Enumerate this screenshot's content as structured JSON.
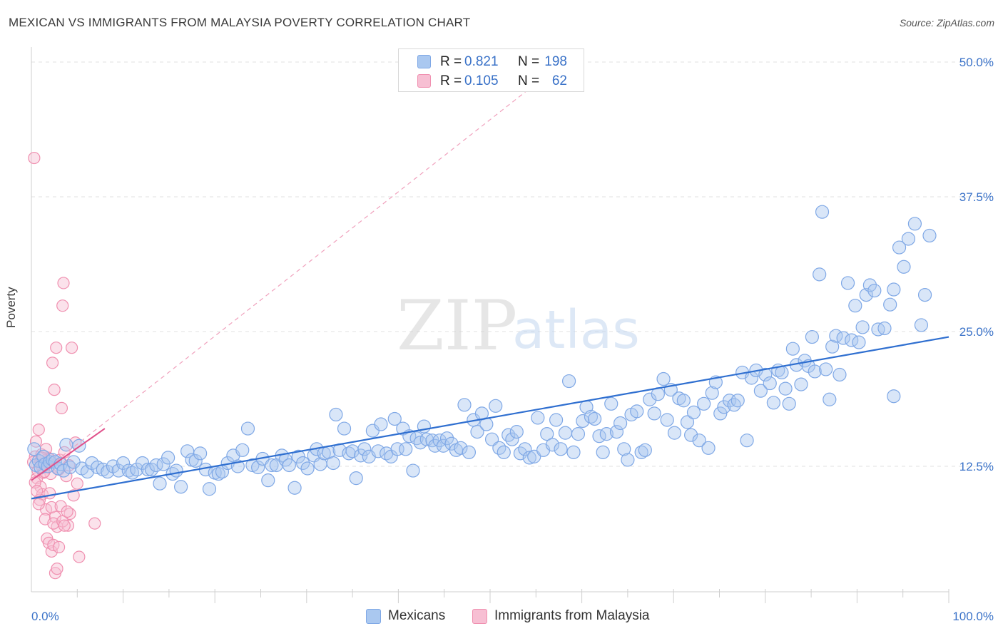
{
  "title": "MEXICAN VS IMMIGRANTS FROM MALAYSIA POVERTY CORRELATION CHART",
  "source": "Source: ZipAtlas.com",
  "watermark": {
    "zip": "ZIP",
    "atlas": "atlas"
  },
  "chart_data": {
    "type": "scatter",
    "title": "MEXICAN VS IMMIGRANTS FROM MALAYSIA POVERTY CORRELATION CHART",
    "xlabel": "",
    "ylabel": "Poverty",
    "xlim": [
      0,
      100
    ],
    "ylim": [
      0,
      50
    ],
    "y_ticks": [
      {
        "value": 50,
        "label": "50.0%"
      },
      {
        "value": 37.5,
        "label": "37.5%"
      },
      {
        "value": 25,
        "label": "25.0%"
      },
      {
        "value": 12.5,
        "label": "12.5%"
      }
    ],
    "x_tick_labels": {
      "min": "0.0%",
      "max": "100.0%"
    },
    "grid": true,
    "legend_position": "bottom",
    "stats": [
      {
        "r_label": "R =",
        "r": "0.821",
        "n_label": "N =",
        "n": "198"
      },
      {
        "r_label": "R =",
        "r": "0.105",
        "n_label": "N =",
        "n": "62"
      }
    ],
    "series": [
      {
        "name": "Mexicans",
        "color": "#7fa8e6",
        "fill": "#aac8f0",
        "line_color": "#2f6fd0",
        "trend": {
          "x": [
            0,
            100
          ],
          "y": [
            9.5,
            24.5
          ]
        },
        "points": [
          [
            0.3,
            14.1
          ],
          [
            0.5,
            12.6
          ],
          [
            0.8,
            13.0
          ],
          [
            1.0,
            12.4
          ],
          [
            1.3,
            13.4
          ],
          [
            1.5,
            12.7
          ],
          [
            1.8,
            12.5
          ],
          [
            2.0,
            12.9
          ],
          [
            2.3,
            13.1
          ],
          [
            2.6,
            12.9
          ],
          [
            2.9,
            12.3
          ],
          [
            3.2,
            12.7
          ],
          [
            3.5,
            12.1
          ],
          [
            3.8,
            14.5
          ],
          [
            4.2,
            12.4
          ],
          [
            4.6,
            12.9
          ],
          [
            5.2,
            14.4
          ],
          [
            5.5,
            12.3
          ],
          [
            6.1,
            12.0
          ],
          [
            6.6,
            12.8
          ],
          [
            7.2,
            12.4
          ],
          [
            7.8,
            12.2
          ],
          [
            8.3,
            12.0
          ],
          [
            8.9,
            12.5
          ],
          [
            9.5,
            12.1
          ],
          [
            10.0,
            12.8
          ],
          [
            10.6,
            12.1
          ],
          [
            11.0,
            11.9
          ],
          [
            11.5,
            12.2
          ],
          [
            12.1,
            12.8
          ],
          [
            12.7,
            12.2
          ],
          [
            13.1,
            12.2
          ],
          [
            13.6,
            12.6
          ],
          [
            14.0,
            10.9
          ],
          [
            14.4,
            12.7
          ],
          [
            14.9,
            13.3
          ],
          [
            15.4,
            11.8
          ],
          [
            15.8,
            12.1
          ],
          [
            16.3,
            10.6
          ],
          [
            17.0,
            13.9
          ],
          [
            17.5,
            13.1
          ],
          [
            17.9,
            13.0
          ],
          [
            18.4,
            13.7
          ],
          [
            19.0,
            12.2
          ],
          [
            19.4,
            10.4
          ],
          [
            20.0,
            11.9
          ],
          [
            20.4,
            11.8
          ],
          [
            20.8,
            12.0
          ],
          [
            21.4,
            12.8
          ],
          [
            22.0,
            13.5
          ],
          [
            22.5,
            12.5
          ],
          [
            23.0,
            14.0
          ],
          [
            23.6,
            16.0
          ],
          [
            24.1,
            12.6
          ],
          [
            24.7,
            12.4
          ],
          [
            25.2,
            13.2
          ],
          [
            25.8,
            11.2
          ],
          [
            26.2,
            12.6
          ],
          [
            26.7,
            12.6
          ],
          [
            27.3,
            13.5
          ],
          [
            27.7,
            13.1
          ],
          [
            28.1,
            12.6
          ],
          [
            28.7,
            10.5
          ],
          [
            29.1,
            13.4
          ],
          [
            29.6,
            12.8
          ],
          [
            30.1,
            12.3
          ],
          [
            30.8,
            13.5
          ],
          [
            31.1,
            14.1
          ],
          [
            31.5,
            12.7
          ],
          [
            31.9,
            13.7
          ],
          [
            32.4,
            13.8
          ],
          [
            32.9,
            12.8
          ],
          [
            33.2,
            17.3
          ],
          [
            33.6,
            14.0
          ],
          [
            34.1,
            16.0
          ],
          [
            34.6,
            13.7
          ],
          [
            35.0,
            13.9
          ],
          [
            35.4,
            11.4
          ],
          [
            35.9,
            13.5
          ],
          [
            36.3,
            14.1
          ],
          [
            36.8,
            13.4
          ],
          [
            37.2,
            15.8
          ],
          [
            37.8,
            13.9
          ],
          [
            38.1,
            16.4
          ],
          [
            38.7,
            13.7
          ],
          [
            39.2,
            13.4
          ],
          [
            39.6,
            16.9
          ],
          [
            39.9,
            14.1
          ],
          [
            40.5,
            16.0
          ],
          [
            40.8,
            14.1
          ],
          [
            41.2,
            15.3
          ],
          [
            41.6,
            12.1
          ],
          [
            42.0,
            15.1
          ],
          [
            42.4,
            14.7
          ],
          [
            42.8,
            16.2
          ],
          [
            43.1,
            15.0
          ],
          [
            43.7,
            14.9
          ],
          [
            44.0,
            14.4
          ],
          [
            44.5,
            14.9
          ],
          [
            44.9,
            14.4
          ],
          [
            45.3,
            15.1
          ],
          [
            45.8,
            14.6
          ],
          [
            46.3,
            14.0
          ],
          [
            46.8,
            14.2
          ],
          [
            47.2,
            18.2
          ],
          [
            47.7,
            13.8
          ],
          [
            48.2,
            16.8
          ],
          [
            48.6,
            15.7
          ],
          [
            49.1,
            17.4
          ],
          [
            49.6,
            16.4
          ],
          [
            50.2,
            15.0
          ],
          [
            50.6,
            18.1
          ],
          [
            51.0,
            14.2
          ],
          [
            51.5,
            13.8
          ],
          [
            52.0,
            15.4
          ],
          [
            52.4,
            15.0
          ],
          [
            52.9,
            15.7
          ],
          [
            53.3,
            13.7
          ],
          [
            53.8,
            14.1
          ],
          [
            54.3,
            13.3
          ],
          [
            54.8,
            13.4
          ],
          [
            55.2,
            17.0
          ],
          [
            55.8,
            14.0
          ],
          [
            56.2,
            15.5
          ],
          [
            56.8,
            14.5
          ],
          [
            57.2,
            16.8
          ],
          [
            57.7,
            14.1
          ],
          [
            58.2,
            15.6
          ],
          [
            58.6,
            20.4
          ],
          [
            59.1,
            13.8
          ],
          [
            59.6,
            15.5
          ],
          [
            60.1,
            16.7
          ],
          [
            60.5,
            18.0
          ],
          [
            61.0,
            17.1
          ],
          [
            61.4,
            16.9
          ],
          [
            61.9,
            15.3
          ],
          [
            62.3,
            13.8
          ],
          [
            62.7,
            15.5
          ],
          [
            63.2,
            18.3
          ],
          [
            63.8,
            15.7
          ],
          [
            64.2,
            16.5
          ],
          [
            64.6,
            14.1
          ],
          [
            65.0,
            13.1
          ],
          [
            65.4,
            17.3
          ],
          [
            66.0,
            17.6
          ],
          [
            66.5,
            13.8
          ],
          [
            66.9,
            14.0
          ],
          [
            67.4,
            18.7
          ],
          [
            67.9,
            17.4
          ],
          [
            68.3,
            19.2
          ],
          [
            68.9,
            20.6
          ],
          [
            69.3,
            16.8
          ],
          [
            69.7,
            19.6
          ],
          [
            70.1,
            15.6
          ],
          [
            70.6,
            18.8
          ],
          [
            71.1,
            18.6
          ],
          [
            71.5,
            16.6
          ],
          [
            71.9,
            15.4
          ],
          [
            72.2,
            17.5
          ],
          [
            72.8,
            14.9
          ],
          [
            73.3,
            18.3
          ],
          [
            73.8,
            14.2
          ],
          [
            74.2,
            19.3
          ],
          [
            74.6,
            20.3
          ],
          [
            75.1,
            17.4
          ],
          [
            75.5,
            18.0
          ],
          [
            76.1,
            18.6
          ],
          [
            76.6,
            18.2
          ],
          [
            77.0,
            18.6
          ],
          [
            77.5,
            21.2
          ],
          [
            78.0,
            14.9
          ],
          [
            78.5,
            20.7
          ],
          [
            79.0,
            21.4
          ],
          [
            79.5,
            19.5
          ],
          [
            80.0,
            21.0
          ],
          [
            80.5,
            20.2
          ],
          [
            80.9,
            18.4
          ],
          [
            81.4,
            21.4
          ],
          [
            81.8,
            21.2
          ],
          [
            82.2,
            19.7
          ],
          [
            82.6,
            18.3
          ],
          [
            83.0,
            23.4
          ],
          [
            83.4,
            21.9
          ],
          [
            83.9,
            20.1
          ],
          [
            84.3,
            22.3
          ],
          [
            84.7,
            21.8
          ],
          [
            85.1,
            24.5
          ],
          [
            85.4,
            21.3
          ],
          [
            85.9,
            30.3
          ],
          [
            86.2,
            36.1
          ],
          [
            86.6,
            21.5
          ],
          [
            87.0,
            18.7
          ],
          [
            87.3,
            23.6
          ],
          [
            87.7,
            24.6
          ],
          [
            88.1,
            21.0
          ],
          [
            88.5,
            24.4
          ],
          [
            89.0,
            29.5
          ],
          [
            89.4,
            24.2
          ],
          [
            89.8,
            27.4
          ],
          [
            90.2,
            24.0
          ],
          [
            90.6,
            25.4
          ],
          [
            91.0,
            28.4
          ],
          [
            91.4,
            29.3
          ],
          [
            91.9,
            28.8
          ],
          [
            92.3,
            25.2
          ],
          [
            93.0,
            25.3
          ],
          [
            93.6,
            27.5
          ],
          [
            94.0,
            28.9
          ],
          [
            94.6,
            32.8
          ],
          [
            95.1,
            31.0
          ],
          [
            95.6,
            33.6
          ],
          [
            96.3,
            35.0
          ],
          [
            97.0,
            25.6
          ],
          [
            97.4,
            28.4
          ],
          [
            97.9,
            33.9
          ],
          [
            94.0,
            19.0
          ]
        ]
      },
      {
        "name": "Immigrants from Malaysia",
        "color": "#f090b0",
        "fill": "#f7bfd3",
        "line_color": "#e0508a",
        "trend": {
          "x": [
            0,
            8
          ],
          "y": [
            11.2,
            16.0
          ]
        },
        "trend_extension": {
          "x": [
            0,
            55
          ],
          "y": [
            11.2,
            48.0
          ]
        },
        "points": [
          [
            0.3,
            41.1
          ],
          [
            0.5,
            14.8
          ],
          [
            0.6,
            11.4
          ],
          [
            0.8,
            15.9
          ],
          [
            1.0,
            10.6
          ],
          [
            1.2,
            9.9
          ],
          [
            1.4,
            12.6
          ],
          [
            1.6,
            8.5
          ],
          [
            1.8,
            13.3
          ],
          [
            2.0,
            10.0
          ],
          [
            2.1,
            11.8
          ],
          [
            2.3,
            22.1
          ],
          [
            2.5,
            19.6
          ],
          [
            2.7,
            23.5
          ],
          [
            0.4,
            13.4
          ],
          [
            0.7,
            12.1
          ],
          [
            0.9,
            9.4
          ],
          [
            1.1,
            13.6
          ],
          [
            1.3,
            11.9
          ],
          [
            1.5,
            7.6
          ],
          [
            1.7,
            5.8
          ],
          [
            1.9,
            5.4
          ],
          [
            2.2,
            4.6
          ],
          [
            2.4,
            5.2
          ],
          [
            2.6,
            7.8
          ],
          [
            2.8,
            6.9
          ],
          [
            3.0,
            12.2
          ],
          [
            3.1,
            13.1
          ],
          [
            3.3,
            17.9
          ],
          [
            3.4,
            27.4
          ],
          [
            3.5,
            29.5
          ],
          [
            3.6,
            13.8
          ],
          [
            3.8,
            11.6
          ],
          [
            4.0,
            7.0
          ],
          [
            4.2,
            8.1
          ],
          [
            4.4,
            23.5
          ],
          [
            4.6,
            9.8
          ],
          [
            4.8,
            14.7
          ],
          [
            5.0,
            10.9
          ],
          [
            5.2,
            4.1
          ],
          [
            0.2,
            12.9
          ],
          [
            0.4,
            11.0
          ],
          [
            0.6,
            10.2
          ],
          [
            0.8,
            9.0
          ],
          [
            1.0,
            13.0
          ],
          [
            1.2,
            12.4
          ],
          [
            1.4,
            12.0
          ],
          [
            1.6,
            14.1
          ],
          [
            1.8,
            12.8
          ],
          [
            2.0,
            13.2
          ],
          [
            2.2,
            8.7
          ],
          [
            2.4,
            7.2
          ],
          [
            2.6,
            2.6
          ],
          [
            2.8,
            3.0
          ],
          [
            3.0,
            5.0
          ],
          [
            3.2,
            8.8
          ],
          [
            3.4,
            7.4
          ],
          [
            3.6,
            7.0
          ],
          [
            3.9,
            8.3
          ],
          [
            4.1,
            12.6
          ],
          [
            6.9,
            7.2
          ],
          [
            1.1,
            13.3
          ]
        ]
      }
    ]
  }
}
